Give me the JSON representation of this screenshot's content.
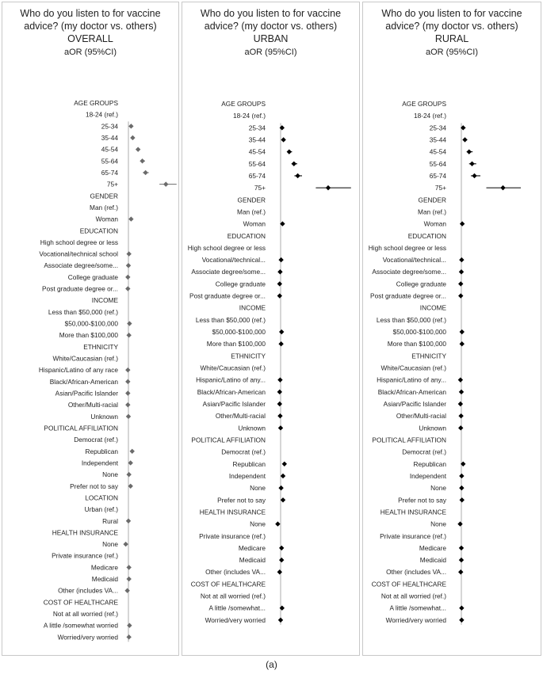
{
  "caption": "(a)",
  "chart_data": [
    {
      "type": "forest",
      "title": "Who do you listen to for vaccine advice? (my doctor vs. others)",
      "subtitle": "OVERALL",
      "metric_label": "aOR (95%CI)",
      "marker_color": "#6b6b6b",
      "rows": [
        {
          "label": "AGE GROUPS",
          "header": true
        },
        {
          "label": "18-24 (ref.)"
        },
        {
          "label": "25-34",
          "or": 1.25,
          "lo": 1.15,
          "hi": 1.4
        },
        {
          "label": "35-44",
          "or": 1.4,
          "lo": 1.3,
          "hi": 1.55
        },
        {
          "label": "45-54",
          "or": 1.9,
          "lo": 1.75,
          "hi": 2.1
        },
        {
          "label": "55-64",
          "or": 2.3,
          "lo": 2.1,
          "hi": 2.55
        },
        {
          "label": "65-74",
          "or": 2.6,
          "lo": 2.35,
          "hi": 2.9
        },
        {
          "label": "75+",
          "or": 4.5,
          "lo": 3.9,
          "hi": 5.5
        },
        {
          "label": "GENDER",
          "header": true
        },
        {
          "label": "Man (ref.)"
        },
        {
          "label": "Woman",
          "or": 1.25,
          "lo": 1.18,
          "hi": 1.35
        },
        {
          "label": "EDUCATION",
          "header": true
        },
        {
          "label": "High school degree or less"
        },
        {
          "label": "Vocational/technical school",
          "or": 1.05,
          "lo": 0.95,
          "hi": 1.15
        },
        {
          "label": "Associate degree/some...",
          "or": 1.0,
          "lo": 0.9,
          "hi": 1.1
        },
        {
          "label": "College graduate",
          "or": 0.95,
          "lo": 0.87,
          "hi": 1.03
        },
        {
          "label": "Post graduate degree or...",
          "or": 0.95,
          "lo": 0.86,
          "hi": 1.05
        },
        {
          "label": "INCOME",
          "header": true
        },
        {
          "label": "Less than $50,000 (ref.)"
        },
        {
          "label": "$50,000-$100,000",
          "or": 1.1,
          "lo": 1.0,
          "hi": 1.2
        },
        {
          "label": "More than $100,000",
          "or": 1.05,
          "lo": 0.95,
          "hi": 1.15
        },
        {
          "label": "ETHNICITY",
          "header": true
        },
        {
          "label": "White/Caucasian (ref.)"
        },
        {
          "label": "Hispanic/Latino of any race",
          "or": 0.95,
          "lo": 0.85,
          "hi": 1.05
        },
        {
          "label": "Black/African-American",
          "or": 0.95,
          "lo": 0.85,
          "hi": 1.05
        },
        {
          "label": "Asian/Pacific Islander",
          "or": 0.95,
          "lo": 0.85,
          "hi": 1.05
        },
        {
          "label": "Other/Multi-racial",
          "or": 0.95,
          "lo": 0.85,
          "hi": 1.05
        },
        {
          "label": "Unknown",
          "or": 1.0,
          "lo": 0.9,
          "hi": 1.1
        },
        {
          "label": "POLITICAL AFFILIATION",
          "header": true
        },
        {
          "label": "Democrat (ref.)"
        },
        {
          "label": "Republican",
          "or": 1.35,
          "lo": 1.25,
          "hi": 1.45
        },
        {
          "label": "Independent",
          "or": 1.2,
          "lo": 1.1,
          "hi": 1.3
        },
        {
          "label": "None",
          "or": 1.05,
          "lo": 0.95,
          "hi": 1.15
        },
        {
          "label": "Prefer not to say",
          "or": 1.2,
          "lo": 1.05,
          "hi": 1.35
        },
        {
          "label": "LOCATION",
          "header": true
        },
        {
          "label": "Urban (ref.)"
        },
        {
          "label": "Rural",
          "or": 1.0,
          "lo": 0.92,
          "hi": 1.08
        },
        {
          "label": "HEALTH INSURANCE",
          "header": true
        },
        {
          "label": "None",
          "or": 0.75,
          "lo": 0.65,
          "hi": 0.85
        },
        {
          "label": "Private insurance (ref.)"
        },
        {
          "label": "Medicare",
          "or": 1.05,
          "lo": 0.97,
          "hi": 1.15
        },
        {
          "label": "Medicaid",
          "or": 1.05,
          "lo": 0.95,
          "hi": 1.15
        },
        {
          "label": "Other (includes VA...",
          "or": 0.9,
          "lo": 0.8,
          "hi": 1.0
        },
        {
          "label": "COST OF HEALTHCARE",
          "header": true
        },
        {
          "label": "Not at all worried (ref.)"
        },
        {
          "label": "A little /somewhat worried",
          "or": 1.1,
          "lo": 1.02,
          "hi": 1.2
        },
        {
          "label": "Worried/very worried",
          "or": 1.05,
          "lo": 0.95,
          "hi": 1.15
        }
      ]
    },
    {
      "type": "forest",
      "title": "Who do you listen to for vaccine advice? (my doctor vs. others)",
      "subtitle": "URBAN",
      "metric_label": "aOR (95%CI)",
      "marker_color": "#000000",
      "rows": [
        {
          "label": "AGE GROUPS",
          "header": true
        },
        {
          "label": "18-24 (ref.)"
        },
        {
          "label": "25-34",
          "or": 1.15,
          "lo": 1.05,
          "hi": 1.3
        },
        {
          "label": "35-44",
          "or": 1.3,
          "lo": 1.2,
          "hi": 1.45
        },
        {
          "label": "45-54",
          "or": 1.9,
          "lo": 1.7,
          "hi": 2.2
        },
        {
          "label": "55-64",
          "or": 2.4,
          "lo": 2.15,
          "hi": 2.75
        },
        {
          "label": "65-74",
          "or": 2.8,
          "lo": 2.45,
          "hi": 3.25
        },
        {
          "label": "75+",
          "or": 6.0,
          "lo": 4.7,
          "hi": 8.4
        },
        {
          "label": "GENDER",
          "header": true
        },
        {
          "label": "Man (ref.)"
        },
        {
          "label": "Woman",
          "or": 1.2,
          "lo": 1.12,
          "hi": 1.3
        },
        {
          "label": "EDUCATION",
          "header": true
        },
        {
          "label": "High school degree or less"
        },
        {
          "label": "Vocational/technical...",
          "or": 1.05,
          "lo": 0.95,
          "hi": 1.2
        },
        {
          "label": "Associate degree/some...",
          "or": 0.95,
          "lo": 0.85,
          "hi": 1.05
        },
        {
          "label": "College graduate",
          "or": 0.9,
          "lo": 0.82,
          "hi": 1.0
        },
        {
          "label": "Post graduate degree or...",
          "or": 0.9,
          "lo": 0.82,
          "hi": 1.0
        },
        {
          "label": "INCOME",
          "header": true
        },
        {
          "label": "Less than $50,000 (ref.)"
        },
        {
          "label": "$50,000-$100,000",
          "or": 1.1,
          "lo": 1.0,
          "hi": 1.2
        },
        {
          "label": "More than $100,000",
          "or": 1.05,
          "lo": 0.95,
          "hi": 1.15
        },
        {
          "label": "ETHNICITY",
          "header": true
        },
        {
          "label": "White/Caucasian (ref.)"
        },
        {
          "label": "Hispanic/Latino of any...",
          "or": 0.95,
          "lo": 0.85,
          "hi": 1.05
        },
        {
          "label": "Black/African-American",
          "or": 0.9,
          "lo": 0.8,
          "hi": 1.0
        },
        {
          "label": "Asian/Pacific Islander",
          "or": 0.9,
          "lo": 0.8,
          "hi": 1.0
        },
        {
          "label": "Other/Multi-racial",
          "or": 0.95,
          "lo": 0.85,
          "hi": 1.05
        },
        {
          "label": "Unknown",
          "or": 1.0,
          "lo": 0.9,
          "hi": 1.15
        },
        {
          "label": "POLITICAL AFFILIATION",
          "header": true
        },
        {
          "label": "Democrat (ref.)"
        },
        {
          "label": "Republican",
          "or": 1.4,
          "lo": 1.25,
          "hi": 1.55
        },
        {
          "label": "Independent",
          "or": 1.25,
          "lo": 1.12,
          "hi": 1.38
        },
        {
          "label": "None",
          "or": 1.05,
          "lo": 0.95,
          "hi": 1.15
        },
        {
          "label": "Prefer not to say",
          "or": 1.25,
          "lo": 1.08,
          "hi": 1.45
        },
        {
          "label": "HEALTH INSURANCE",
          "header": true
        },
        {
          "label": "None",
          "or": 0.7,
          "lo": 0.6,
          "hi": 0.8
        },
        {
          "label": "Private insurance (ref.)"
        },
        {
          "label": "Medicare",
          "or": 1.1,
          "lo": 1.0,
          "hi": 1.2
        },
        {
          "label": "Medicaid",
          "or": 1.1,
          "lo": 1.0,
          "hi": 1.2
        },
        {
          "label": "Other (includes VA...",
          "or": 0.9,
          "lo": 0.8,
          "hi": 1.0
        },
        {
          "label": "COST OF HEALTHCARE",
          "header": true
        },
        {
          "label": "Not at all worried (ref.)"
        },
        {
          "label": "A little /somewhat...",
          "or": 1.15,
          "lo": 1.05,
          "hi": 1.25
        },
        {
          "label": "Worried/very worried",
          "or": 1.0,
          "lo": 0.9,
          "hi": 1.1
        }
      ]
    },
    {
      "type": "forest",
      "title": "Who do you listen to for vaccine advice? (my doctor vs. others)",
      "subtitle": "RURAL",
      "metric_label": "aOR (95%CI)",
      "marker_color": "#000000",
      "rows": [
        {
          "label": "AGE GROUPS",
          "header": true
        },
        {
          "label": "18-24 (ref.)"
        },
        {
          "label": "25-34",
          "or": 1.3,
          "lo": 1.1,
          "hi": 1.7
        },
        {
          "label": "35-44",
          "or": 1.6,
          "lo": 1.35,
          "hi": 2.0
        },
        {
          "label": "45-54",
          "or": 2.3,
          "lo": 1.9,
          "hi": 2.9
        },
        {
          "label": "55-64",
          "or": 2.8,
          "lo": 2.3,
          "hi": 3.5
        },
        {
          "label": "65-74",
          "or": 3.2,
          "lo": 2.6,
          "hi": 4.2
        },
        {
          "label": "75+",
          "or": 8.0,
          "lo": 5.2,
          "hi": 11.0
        },
        {
          "label": "GENDER",
          "header": true
        },
        {
          "label": "Man (ref.)"
        },
        {
          "label": "Woman",
          "or": 1.15,
          "lo": 1.05,
          "hi": 1.3
        },
        {
          "label": "EDUCATION",
          "header": true
        },
        {
          "label": "High school degree or less"
        },
        {
          "label": "Vocational/technical...",
          "or": 1.05,
          "lo": 0.92,
          "hi": 1.2
        },
        {
          "label": "Associate degree/some...",
          "or": 1.0,
          "lo": 0.88,
          "hi": 1.15
        },
        {
          "label": "College graduate",
          "or": 0.9,
          "lo": 0.8,
          "hi": 1.02
        },
        {
          "label": "Post graduate degree or...",
          "or": 0.9,
          "lo": 0.78,
          "hi": 1.03
        },
        {
          "label": "INCOME",
          "header": true
        },
        {
          "label": "Less than $50,000 (ref.)"
        },
        {
          "label": "$50,000-$100,000",
          "or": 1.1,
          "lo": 0.98,
          "hi": 1.25
        },
        {
          "label": "More than $100,000",
          "or": 1.1,
          "lo": 0.95,
          "hi": 1.28
        },
        {
          "label": "ETHNICITY",
          "header": true
        },
        {
          "label": "White/Caucasian (ref.)"
        },
        {
          "label": "Hispanic/Latino of any...",
          "or": 0.85,
          "lo": 0.72,
          "hi": 1.0
        },
        {
          "label": "Black/African-American",
          "or": 1.0,
          "lo": 0.85,
          "hi": 1.18
        },
        {
          "label": "Asian/Pacific Islander",
          "or": 0.85,
          "lo": 0.72,
          "hi": 1.0
        },
        {
          "label": "Other/Multi-racial",
          "or": 0.95,
          "lo": 0.8,
          "hi": 1.12
        },
        {
          "label": "Unknown",
          "or": 0.9,
          "lo": 0.78,
          "hi": 1.03
        },
        {
          "label": "POLITICAL AFFILIATION",
          "header": true
        },
        {
          "label": "Democrat (ref.)"
        },
        {
          "label": "Republican",
          "or": 1.3,
          "lo": 1.15,
          "hi": 1.5
        },
        {
          "label": "Independent",
          "or": 1.05,
          "lo": 0.93,
          "hi": 1.2
        },
        {
          "label": "None",
          "or": 1.05,
          "lo": 0.93,
          "hi": 1.2
        },
        {
          "label": "Prefer not to say",
          "or": 1.1,
          "lo": 0.9,
          "hi": 1.35
        },
        {
          "label": "HEALTH INSURANCE",
          "header": true
        },
        {
          "label": "None",
          "or": 0.8,
          "lo": 0.6,
          "hi": 1.0
        },
        {
          "label": "Private insurance (ref.)"
        },
        {
          "label": "Medicare",
          "or": 1.0,
          "lo": 0.9,
          "hi": 1.12
        },
        {
          "label": "Medicaid",
          "or": 1.0,
          "lo": 0.88,
          "hi": 1.13
        },
        {
          "label": "Other (includes VA...",
          "or": 0.9,
          "lo": 0.78,
          "hi": 1.03
        },
        {
          "label": "COST OF HEALTHCARE",
          "header": true
        },
        {
          "label": "Not at all worried (ref.)"
        },
        {
          "label": "A little /somewhat...",
          "or": 1.05,
          "lo": 0.95,
          "hi": 1.18
        },
        {
          "label": "Worried/very worried",
          "or": 1.05,
          "lo": 0.94,
          "hi": 1.18
        }
      ]
    }
  ]
}
